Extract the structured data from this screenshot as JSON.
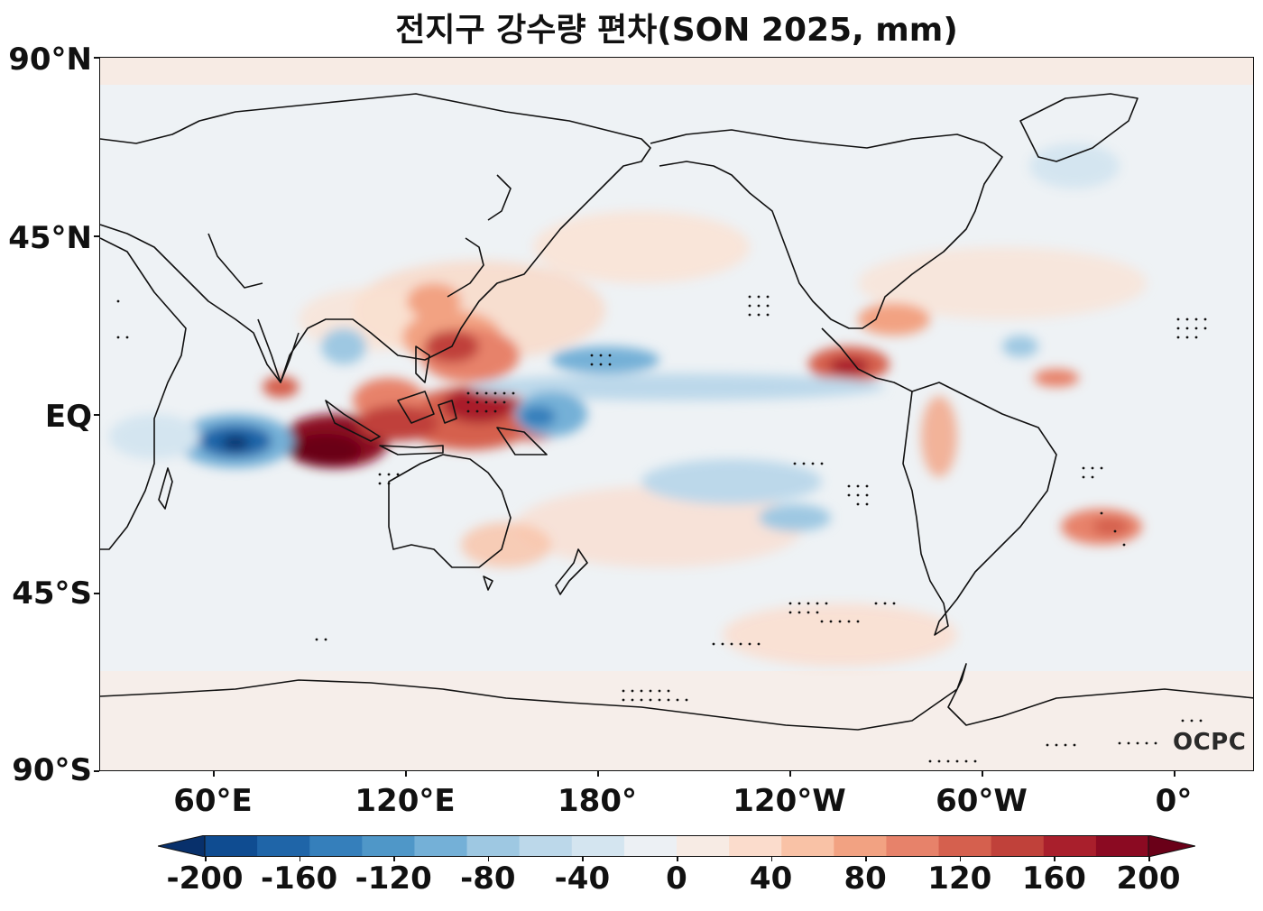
{
  "title": "전지구 강수량 편차(SON 2025, mm)",
  "map": {
    "lat_labels": [
      "90°N",
      "45°N",
      "EQ",
      "45°S",
      "90°S"
    ],
    "lon_labels": [
      "60°E",
      "120°E",
      "180°",
      "120°W",
      "60°W",
      "0°"
    ],
    "logo": "OCPC"
  },
  "colorbar": {
    "tick_labels": [
      "-200",
      "-160",
      "-120",
      "-80",
      "-40",
      "0",
      "40",
      "80",
      "120",
      "160",
      "200"
    ],
    "colors": [
      "#08306b",
      "#0f4c91",
      "#1f65a8",
      "#357fbb",
      "#4f97c8",
      "#74b0d7",
      "#9ec8e2",
      "#bcd8ea",
      "#d4e5f0",
      "#ecf0f4",
      "#f7ebe4",
      "#fbdccc",
      "#f9c2a6",
      "#f2a282",
      "#e7826a",
      "#d5604e",
      "#c0413a",
      "#a91f2c",
      "#8b0a22",
      "#6a0018"
    ]
  },
  "colors": {
    "negative_extreme": "#08306b",
    "positive_extreme": "#67001f",
    "ocean_bg": "#eef2f5"
  }
}
